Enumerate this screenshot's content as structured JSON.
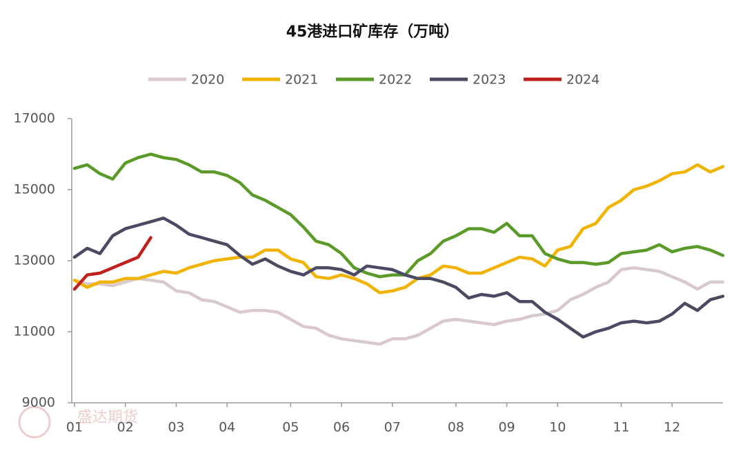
{
  "chart_data": {
    "type": "line",
    "title": "45港进口矿库存（万吨）",
    "watermark": "盛达期货",
    "categories": [
      "01",
      null,
      null,
      null,
      "02",
      null,
      null,
      null,
      "03",
      null,
      null,
      null,
      "04",
      null,
      null,
      null,
      null,
      "05",
      null,
      null,
      null,
      "06",
      null,
      null,
      null,
      "07",
      null,
      null,
      null,
      null,
      "08",
      null,
      null,
      null,
      "09",
      null,
      null,
      null,
      "10",
      null,
      null,
      null,
      null,
      "11",
      null,
      null,
      null,
      "12",
      null,
      null,
      null,
      null
    ],
    "ylim": [
      9000,
      17000
    ],
    "yticks": [
      9000,
      11000,
      13000,
      15000,
      17000
    ],
    "grid": false,
    "legend": "top",
    "series": [
      {
        "name": "2020",
        "color": "#d9c8cc",
        "values": [
          12450,
          12350,
          12350,
          12300,
          12400,
          12500,
          12450,
          12400,
          12150,
          12100,
          11900,
          11850,
          11700,
          11550,
          11600,
          11600,
          11550,
          11350,
          11150,
          11100,
          10900,
          10800,
          10750,
          10700,
          10650,
          10800,
          10800,
          10900,
          11100,
          11300,
          11350,
          11300,
          11250,
          11200,
          11300,
          11350,
          11450,
          11500,
          11600,
          11900,
          12050,
          12250,
          12400,
          12750,
          12800,
          12750,
          12700,
          12550,
          12400,
          12200,
          12400,
          12400
        ]
      },
      {
        "name": "2021",
        "color": "#f0b400",
        "values": [
          12450,
          12250,
          12400,
          12400,
          12500,
          12500,
          12600,
          12700,
          12650,
          12800,
          12900,
          13000,
          13050,
          13100,
          13100,
          13300,
          13300,
          13050,
          12950,
          12550,
          12500,
          12600,
          12500,
          12350,
          12100,
          12150,
          12250,
          12500,
          12600,
          12850,
          12800,
          12650,
          12650,
          12800,
          12950,
          13100,
          13050,
          12850,
          13300,
          13400,
          13900,
          14050,
          14500,
          14700,
          15000,
          15100,
          15250,
          15450,
          15500,
          15700,
          15500,
          15650
        ]
      },
      {
        "name": "2022",
        "color": "#5a9a28",
        "values": [
          15600,
          15700,
          15450,
          15300,
          15750,
          15900,
          16000,
          15900,
          15850,
          15700,
          15500,
          15500,
          15400,
          15200,
          14850,
          14700,
          14500,
          14300,
          13950,
          13550,
          13450,
          13200,
          12800,
          12650,
          12550,
          12600,
          12600,
          13000,
          13200,
          13550,
          13700,
          13900,
          13900,
          13800,
          14050,
          13700,
          13700,
          13200,
          13050,
          12950,
          12950,
          12900,
          12950,
          13200,
          13250,
          13300,
          13450,
          13250,
          13350,
          13400,
          13300,
          13150
        ]
      },
      {
        "name": "2023",
        "color": "#4a4a63",
        "values": [
          13100,
          13350,
          13200,
          13700,
          13900,
          14000,
          14100,
          14200,
          14000,
          13750,
          13650,
          13550,
          13450,
          13150,
          12900,
          13050,
          12850,
          12700,
          12600,
          12800,
          12800,
          12750,
          12600,
          12850,
          12800,
          12750,
          12600,
          12500,
          12500,
          12400,
          12250,
          11950,
          12050,
          12000,
          12100,
          11850,
          11850,
          11550,
          11350,
          11100,
          10850,
          11000,
          11100,
          11250,
          11300,
          11250,
          11300,
          11500,
          11800,
          11600,
          11900,
          12000
        ]
      },
      {
        "name": "2024",
        "color": "#c0201c",
        "values": [
          12200,
          12600,
          12650,
          12800,
          12950,
          13100,
          13650,
          null,
          null,
          null,
          null,
          null,
          null,
          null,
          null,
          null,
          null,
          null,
          null,
          null,
          null,
          null,
          null,
          null,
          null,
          null,
          null,
          null,
          null,
          null,
          null,
          null,
          null,
          null,
          null,
          null,
          null,
          null,
          null,
          null,
          null,
          null,
          null,
          null,
          null,
          null,
          null,
          null,
          null,
          null,
          null,
          null
        ]
      }
    ]
  }
}
